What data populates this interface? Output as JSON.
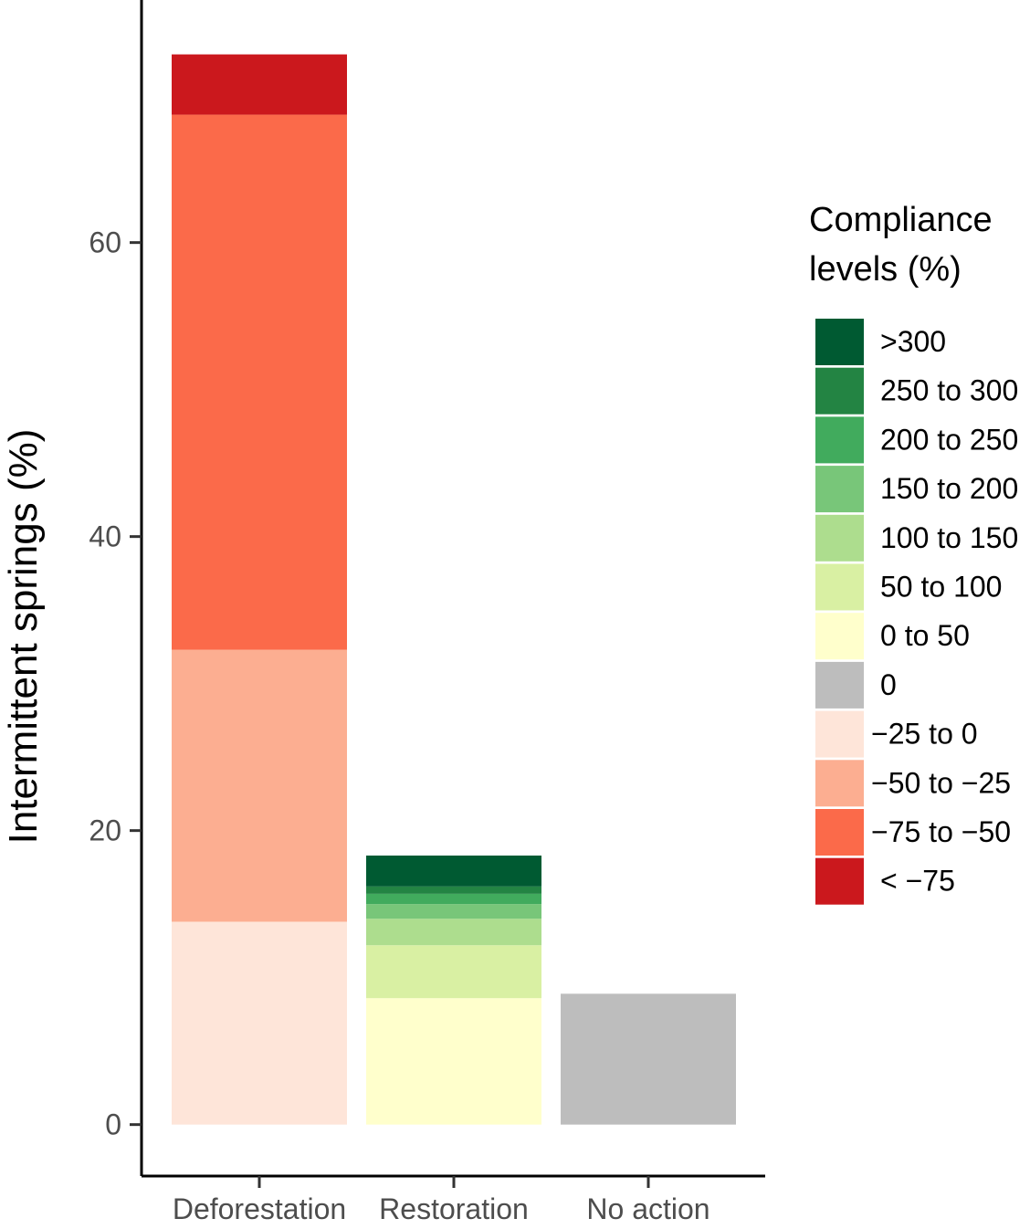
{
  "chart_data": {
    "type": "bar",
    "stacked": true,
    "categories": [
      "Deforestation",
      "Restoration",
      "No action"
    ],
    "ylabel": "Intermittent springs (%)",
    "xlabel": "",
    "ylim": [
      -3.5,
      76.5
    ],
    "yticks": [
      0,
      20,
      40,
      60
    ],
    "ytick_labels": [
      "0",
      "20",
      "40",
      "60"
    ],
    "grid": false,
    "legend": {
      "title_lines": [
        "Compliance",
        "levels (%)"
      ],
      "placement": "right",
      "entries": [
        {
          "label": ">300",
          "color": "#005a32"
        },
        {
          "label": "250 to 300",
          "color": "#238443"
        },
        {
          "label": "200 to 250",
          "color": "#41ab5d"
        },
        {
          "label": "150 to 200",
          "color": "#78c679"
        },
        {
          "label": "100 to 150",
          "color": "#addd8e"
        },
        {
          "label": "50 to 100",
          "color": "#d9f0a3"
        },
        {
          "label": "0 to 50",
          "color": "#ffffcc"
        },
        {
          "label": "0",
          "color": "#bdbdbd"
        },
        {
          "label": "−25 to 0",
          "color": "#fee5d9"
        },
        {
          "label": "−50 to −25",
          "color": "#fcae91"
        },
        {
          "label": "−75 to −50",
          "color": "#fb6a4a"
        },
        {
          "label": "< −75",
          "color": "#cb181d"
        }
      ]
    },
    "series": [
      {
        "name": "< −75",
        "values": [
          4.1,
          0,
          0
        ]
      },
      {
        "name": "−75 to −50",
        "values": [
          36.4,
          0,
          0
        ]
      },
      {
        "name": "−50 to −25",
        "values": [
          18.5,
          0,
          0
        ]
      },
      {
        "name": "−25 to 0",
        "values": [
          13.8,
          0,
          0
        ]
      },
      {
        "name": ">300",
        "values": [
          0,
          2.1,
          0
        ]
      },
      {
        "name": "250 to 300",
        "values": [
          0,
          0.5,
          0
        ]
      },
      {
        "name": "200 to 250",
        "values": [
          0,
          0.7,
          0
        ]
      },
      {
        "name": "150 to 200",
        "values": [
          0,
          1.0,
          0
        ]
      },
      {
        "name": "100 to 150",
        "values": [
          0,
          1.8,
          0
        ]
      },
      {
        "name": "50 to 100",
        "values": [
          0,
          3.6,
          0
        ]
      },
      {
        "name": "0 to 50",
        "values": [
          0,
          8.6,
          0
        ]
      },
      {
        "name": "0",
        "values": [
          0,
          0,
          8.9
        ]
      }
    ],
    "stack_order": [
      "−25 to 0",
      "−50 to −25",
      "−75 to −50",
      "< −75",
      "0 to 50",
      "50 to 100",
      "100 to 150",
      "150 to 200",
      "200 to 250",
      "250 to 300",
      ">300",
      "0"
    ]
  }
}
